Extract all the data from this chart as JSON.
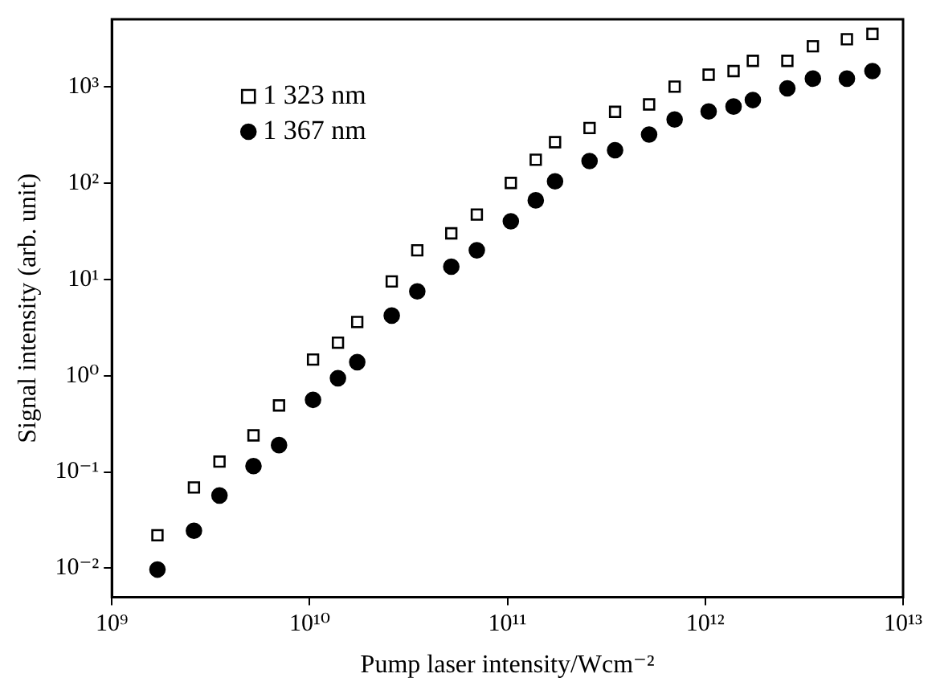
{
  "chart_data": {
    "type": "scatter",
    "xlabel": "Pump laser intensity/Wcm⁻²",
    "ylabel": "Signal intensity (arb. unit)",
    "log": "xy",
    "grid": false,
    "legend": "top left",
    "xlim": [
      1000000000.0,
      10000000000000.0
    ],
    "ylim": [
      0.005,
      5000
    ],
    "xticks": [
      {
        "value": 1000000000.0,
        "label": "10⁹"
      },
      {
        "value": 10000000000.0,
        "label": "10¹⁰"
      },
      {
        "value": 100000000000.0,
        "label": "10¹¹"
      },
      {
        "value": 1000000000000.0,
        "label": "10¹²"
      },
      {
        "value": 10000000000000.0,
        "label": "10¹³"
      }
    ],
    "yticks": [
      {
        "value": 0.01,
        "label": "10⁻²"
      },
      {
        "value": 0.1,
        "label": "10⁻¹"
      },
      {
        "value": 1,
        "label": "10⁰"
      },
      {
        "value": 10,
        "label": "10¹"
      },
      {
        "value": 100,
        "label": "10²"
      },
      {
        "value": 1000,
        "label": "10³"
      }
    ],
    "x": [
      1700000000.0,
      2600000000.0,
      3500000000.0,
      5200000000.0,
      7000000000.0,
      10400000000.0,
      13900000000.0,
      17400000000.0,
      26000000000.0,
      35000000000.0,
      52000000000.0,
      70000000000.0,
      104000000000.0,
      139000000000.0,
      174000000000.0,
      260000000000.0,
      350000000000.0,
      520000000000.0,
      700000000000.0,
      1040000000000.0,
      1390000000000.0,
      1740000000000.0,
      2600000000000.0,
      3500000000000.0,
      5200000000000.0,
      7000000000000.0
    ],
    "series": [
      {
        "name": "1 323 nm",
        "color": "#000000",
        "marker": "square",
        "values": [
          0.022,
          0.069,
          0.128,
          0.24,
          0.49,
          1.47,
          2.2,
          3.6,
          9.5,
          20,
          30,
          47,
          100,
          174,
          265,
          372,
          547,
          653,
          1000,
          1330,
          1450,
          1850,
          1850,
          2620,
          3100,
          3520
        ]
      },
      {
        "name": "1 367 nm",
        "color": "#000000",
        "marker": "circle",
        "values": [
          0.0097,
          0.0245,
          0.057,
          0.115,
          0.19,
          0.56,
          0.94,
          1.38,
          4.2,
          7.5,
          13.5,
          20,
          40,
          66,
          104,
          169,
          219,
          318,
          456,
          553,
          621,
          725,
          960,
          1210,
          1210,
          1450
        ]
      }
    ]
  }
}
